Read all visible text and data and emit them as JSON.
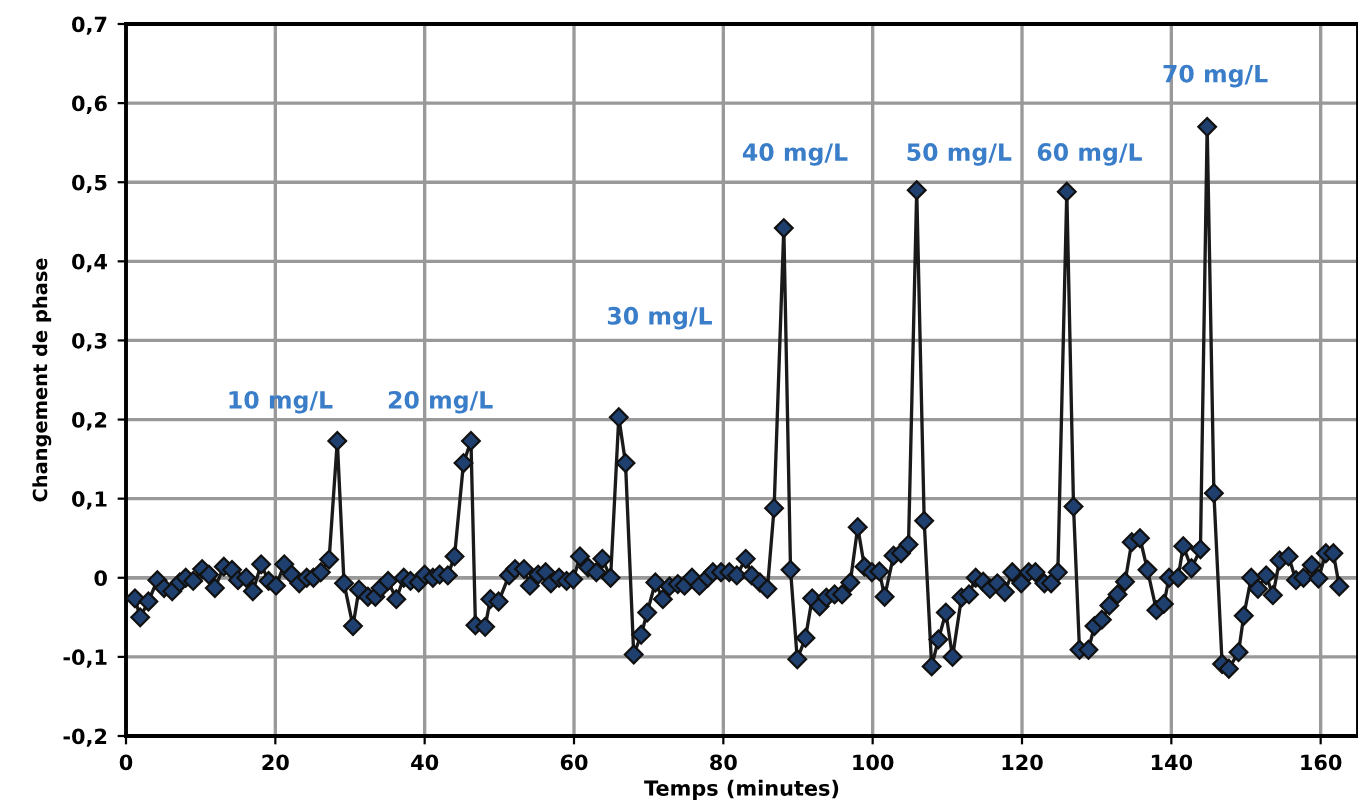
{
  "chart_data": {
    "type": "line",
    "xlabel": "Temps (minutes)",
    "ylabel": "Changement de phase",
    "xlim": [
      0,
      165
    ],
    "xticks": [
      0,
      20,
      40,
      60,
      80,
      100,
      120,
      140,
      160
    ],
    "ylim": [
      -0.2,
      0.7
    ],
    "yticks": [
      {
        "value": -0.2,
        "label": "-0,2"
      },
      {
        "value": -0.1,
        "label": "-0,1"
      },
      0,
      {
        "value": 0.1,
        "label": "0,1"
      },
      {
        "value": 0.2,
        "label": "0,2"
      },
      {
        "value": 0.3,
        "label": "0,3"
      },
      {
        "value": 0.4,
        "label": "0,4"
      },
      {
        "value": 0.5,
        "label": "0,5"
      },
      {
        "value": 0.6,
        "label": "0,6"
      },
      {
        "value": 0.7,
        "label": "0,7"
      }
    ],
    "grid": true,
    "marker": "diamond",
    "line_style": "solid",
    "series": [
      {
        "color": "#1f3f6e",
        "x": [
          1.2,
          1.9,
          3.0,
          4.2,
          5.1,
          6.2,
          7.2,
          8.0,
          9.0,
          10.2,
          11.1,
          11.9,
          13.1,
          14.2,
          15.0,
          16.1,
          17.0,
          18.1,
          19.1,
          20.1,
          21.2,
          22.2,
          23.2,
          24.2,
          25.1,
          26.1,
          27.2,
          28.3,
          29.2,
          30.4,
          31.2,
          32.4,
          33.4,
          34.1,
          35.1,
          36.2,
          37.2,
          38.1,
          39.2,
          40.0,
          41.1,
          42.0,
          43.1,
          44.0,
          45.2,
          46.2,
          46.8,
          48.1,
          48.8,
          49.9,
          51.3,
          52.1,
          53.3,
          54.1,
          55.2,
          56.2,
          56.9,
          58.0,
          59.0,
          59.9,
          60.8,
          61.9,
          63.0,
          63.8,
          64.9,
          66.0,
          66.9,
          68.0,
          69.0,
          69.8,
          70.9,
          71.9,
          72.8,
          73.9,
          74.8,
          75.8,
          76.8,
          77.9,
          78.6,
          79.7,
          80.8,
          81.8,
          83.0,
          83.8,
          84.9,
          85.9,
          86.8,
          88.1,
          89.0,
          89.9,
          91.0,
          91.9,
          92.9,
          93.8,
          94.9,
          95.9,
          97.0,
          98.0,
          98.9,
          99.9,
          100.9,
          101.6,
          102.8,
          103.8,
          104.8,
          105.9,
          106.9,
          107.9,
          108.8,
          109.8,
          110.7,
          111.9,
          112.9,
          113.8,
          114.8,
          115.7,
          116.7,
          117.7,
          118.7,
          119.9,
          120.9,
          121.8,
          123.0,
          123.9,
          124.8,
          126.0,
          126.9,
          127.7,
          128.9,
          129.7,
          130.7,
          131.7,
          132.8,
          133.8,
          134.7,
          135.8,
          136.8,
          138.0,
          139.0,
          139.7,
          140.9,
          141.6,
          142.7,
          143.9,
          144.8,
          145.7,
          146.8,
          147.7,
          149.0,
          149.7,
          150.7,
          151.6,
          152.7,
          153.6,
          154.5,
          155.7,
          156.7,
          157.7,
          158.8,
          159.7,
          160.7,
          161.7,
          162.5
        ],
        "values": [
          -0.026,
          -0.05,
          -0.03,
          -0.003,
          -0.013,
          -0.017,
          -0.006,
          0.0,
          -0.004,
          0.011,
          0.004,
          -0.013,
          0.014,
          0.01,
          -0.003,
          0.0,
          -0.017,
          0.017,
          -0.004,
          -0.01,
          0.017,
          0.004,
          -0.007,
          0.0,
          0.0,
          0.007,
          0.023,
          0.173,
          -0.007,
          -0.061,
          -0.015,
          -0.024,
          -0.024,
          -0.013,
          -0.004,
          -0.027,
          0.0,
          -0.004,
          -0.006,
          0.004,
          0.0,
          0.004,
          0.003,
          0.027,
          0.145,
          0.173,
          -0.06,
          -0.062,
          -0.027,
          -0.03,
          0.003,
          0.011,
          0.011,
          -0.01,
          0.004,
          0.007,
          -0.007,
          0.0,
          -0.004,
          -0.002,
          0.027,
          0.013,
          0.007,
          0.024,
          0.0,
          0.203,
          0.145,
          -0.097,
          -0.072,
          -0.044,
          -0.006,
          -0.027,
          -0.011,
          -0.008,
          -0.01,
          0.0,
          -0.01,
          0.0,
          0.007,
          0.007,
          0.007,
          0.003,
          0.024,
          0.003,
          -0.006,
          -0.014,
          0.088,
          0.442,
          0.01,
          -0.103,
          -0.076,
          -0.026,
          -0.036,
          -0.025,
          -0.021,
          -0.021,
          -0.006,
          0.064,
          0.014,
          0.007,
          0.008,
          -0.024,
          0.028,
          0.031,
          0.042,
          0.49,
          0.072,
          -0.112,
          -0.078,
          -0.044,
          -0.1,
          -0.025,
          -0.021,
          0.0,
          -0.005,
          -0.014,
          -0.007,
          -0.018,
          0.007,
          -0.007,
          0.007,
          0.007,
          -0.007,
          -0.007,
          0.007,
          0.488,
          0.09,
          -0.091,
          -0.091,
          -0.061,
          -0.053,
          -0.035,
          -0.021,
          -0.005,
          0.045,
          0.05,
          0.01,
          -0.041,
          -0.033,
          0.0,
          0.0,
          0.04,
          0.012,
          0.036,
          0.57,
          0.107,
          -0.109,
          -0.115,
          -0.094,
          -0.048,
          0.0,
          -0.014,
          0.003,
          -0.022,
          0.022,
          0.027,
          -0.003,
          0.0,
          0.016,
          -0.001,
          0.031,
          0.031,
          -0.011
        ]
      }
    ],
    "annotations": [
      "10 mg/L",
      "20 mg/L",
      "30 mg/L",
      "40 mg/L",
      "50 mg/L",
      "60 mg/L",
      "70 mg/L"
    ]
  }
}
